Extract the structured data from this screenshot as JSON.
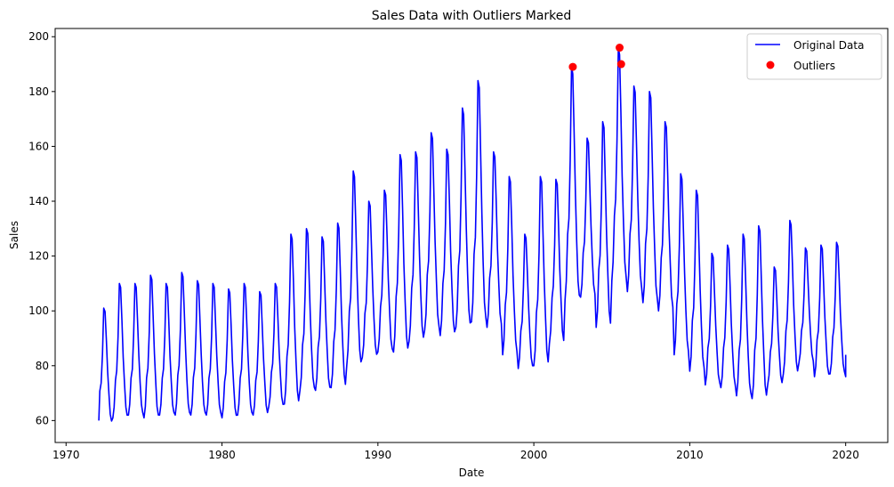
{
  "chart_data": {
    "type": "line",
    "title": "Sales Data with Outliers Marked",
    "xlabel": "Date",
    "ylabel": "Sales",
    "xlim": [
      1969.3,
      2022.7
    ],
    "ylim": [
      52,
      203
    ],
    "x_ticks": [
      1970,
      1980,
      1990,
      2000,
      2010,
      2020
    ],
    "y_ticks": [
      60,
      80,
      100,
      120,
      140,
      160,
      180,
      200
    ],
    "grid": false,
    "legend_position": "top-right",
    "legend": [
      "Original Data",
      "Outliers"
    ],
    "colors": {
      "line": "#0000ff",
      "outlier": "#ff0000"
    },
    "series": [
      {
        "name": "Original Data",
        "type": "line",
        "seasonal_min_max": [
          [
            1972,
            59,
            101
          ],
          [
            1973,
            61,
            110
          ],
          [
            1974,
            62,
            110
          ],
          [
            1975,
            61,
            113
          ],
          [
            1976,
            62,
            110
          ],
          [
            1977,
            62,
            114
          ],
          [
            1978,
            62,
            111
          ],
          [
            1979,
            62,
            110
          ],
          [
            1980,
            61,
            108
          ],
          [
            1981,
            62,
            110
          ],
          [
            1982,
            62,
            107
          ],
          [
            1983,
            65,
            110
          ],
          [
            1984,
            66,
            128
          ],
          [
            1985,
            71,
            130
          ],
          [
            1986,
            71,
            127
          ],
          [
            1987,
            72,
            132
          ],
          [
            1988,
            80,
            151
          ],
          [
            1989,
            83,
            140
          ],
          [
            1990,
            85,
            144
          ],
          [
            1991,
            85,
            157
          ],
          [
            1992,
            89,
            158
          ],
          [
            1993,
            93,
            165
          ],
          [
            1994,
            91,
            159
          ],
          [
            1995,
            94,
            174
          ],
          [
            1996,
            96,
            184
          ],
          [
            1997,
            94,
            158
          ],
          [
            1998,
            84,
            149
          ],
          [
            1999,
            79,
            128
          ],
          [
            2000,
            80,
            149
          ],
          [
            2001,
            88,
            148
          ],
          [
            2002,
            104,
            189
          ],
          [
            2003,
            105,
            163
          ],
          [
            2004,
            94,
            169
          ],
          [
            2005,
            111,
            196
          ],
          [
            2006,
            107,
            182
          ],
          [
            2007,
            103,
            180
          ],
          [
            2008,
            100,
            169
          ],
          [
            2009,
            84,
            150
          ],
          [
            2010,
            78,
            144
          ],
          [
            2011,
            73,
            121
          ],
          [
            2012,
            72,
            124
          ],
          [
            2013,
            69,
            128
          ],
          [
            2014,
            68,
            131
          ],
          [
            2015,
            73,
            116
          ],
          [
            2016,
            77,
            133
          ],
          [
            2017,
            81,
            123
          ],
          [
            2018,
            76,
            124
          ],
          [
            2019,
            77,
            125
          ],
          [
            2020,
            76,
            84
          ]
        ],
        "start": [
          1972.1,
          60
        ],
        "end": [
          2020.0,
          84
        ]
      },
      {
        "name": "Outliers",
        "type": "scatter",
        "points": [
          {
            "x": 2002.5,
            "y": 189
          },
          {
            "x": 2005.5,
            "y": 196
          },
          {
            "x": 2005.6,
            "y": 190
          }
        ]
      }
    ]
  }
}
